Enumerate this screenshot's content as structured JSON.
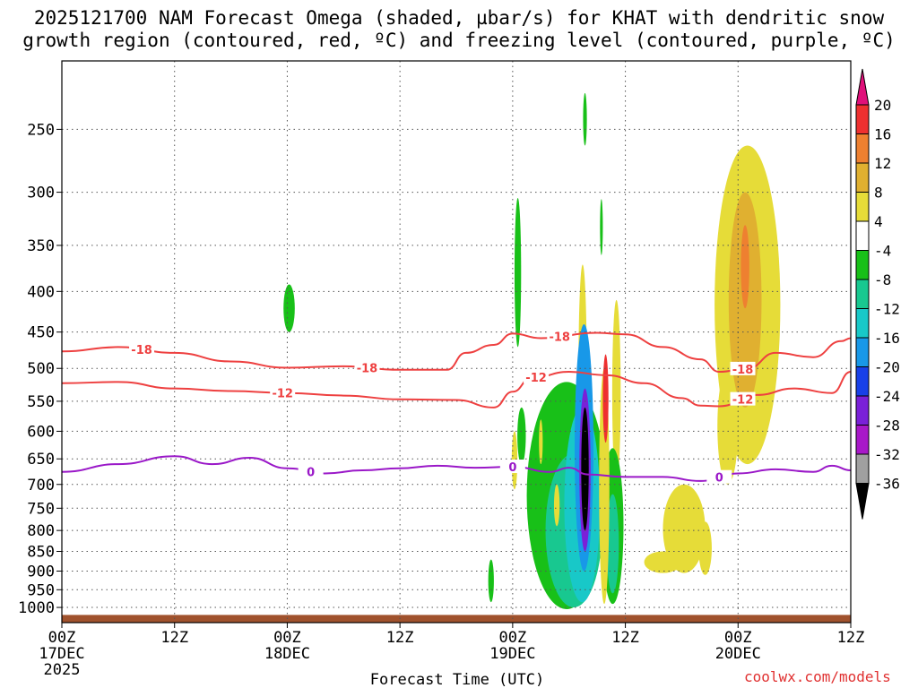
{
  "chart_data": {
    "type": "heatmap",
    "title_line1": "2025121700 NAM Forecast Omega (shaded, µbar/s) for KHAT with dendritic snow",
    "title_line2": "growth region (contoured, red, ºC) and freezing level (contoured, purple, ºC)",
    "xlabel": "Forecast Time (UTC)",
    "ylabel": "Pressure (hPa)",
    "x_ticks": [
      {
        "hours": 0,
        "line1": "00Z",
        "line2": "17DEC",
        "line3": "2025"
      },
      {
        "hours": 12,
        "line1": "12Z",
        "line2": "",
        "line3": ""
      },
      {
        "hours": 24,
        "line1": "00Z",
        "line2": "18DEC",
        "line3": ""
      },
      {
        "hours": 36,
        "line1": "12Z",
        "line2": "",
        "line3": ""
      },
      {
        "hours": 48,
        "line1": "00Z",
        "line2": "19DEC",
        "line3": ""
      },
      {
        "hours": 60,
        "line1": "12Z",
        "line2": "",
        "line3": ""
      },
      {
        "hours": 72,
        "line1": "00Z",
        "line2": "20DEC",
        "line3": ""
      },
      {
        "hours": 84,
        "line1": "12Z",
        "line2": "",
        "line3": ""
      }
    ],
    "x_range_hours": [
      0,
      84
    ],
    "y_ticks": [
      250,
      300,
      350,
      400,
      450,
      500,
      550,
      600,
      650,
      700,
      750,
      800,
      850,
      900,
      950,
      1000
    ],
    "y_range_hpa": [
      205,
      1045
    ],
    "colorbar": {
      "labels": [
        "20",
        "16",
        "12",
        "8",
        "4",
        "-4",
        "-8",
        "-12",
        "-16",
        "-20",
        "-24",
        "-28",
        "-32",
        "-36"
      ],
      "colors": [
        "#ee3030",
        "#ee8030",
        "#e0b030",
        "#e6dc38",
        "#ffffff",
        "#18c018",
        "#18c890",
        "#18c8c8",
        "#1898e8",
        "#1840e8",
        "#7a20d8",
        "#a818c8",
        "#a0a0a0",
        "#000000"
      ],
      "top_color": "#e0107a",
      "bottom_color": "#000000"
    },
    "series": [
      {
        "name": "-18 C",
        "color": "#ee4040",
        "label": "-18",
        "label_at_hours": [
          8.5,
          32.5,
          53,
          72.5
        ],
        "points": [
          [
            0,
            476
          ],
          [
            6,
            470
          ],
          [
            12,
            478
          ],
          [
            18,
            490
          ],
          [
            24,
            499
          ],
          [
            30,
            497
          ],
          [
            36,
            502
          ],
          [
            41,
            502
          ],
          [
            43,
            478
          ],
          [
            46,
            467
          ],
          [
            48,
            452
          ],
          [
            51,
            458
          ],
          [
            57,
            451
          ],
          [
            60,
            453
          ],
          [
            64,
            470
          ],
          [
            68,
            487
          ],
          [
            70,
            505
          ],
          [
            73,
            500
          ],
          [
            76,
            478
          ],
          [
            80,
            484
          ],
          [
            83,
            462
          ],
          [
            84,
            458
          ]
        ]
      },
      {
        "name": "-12 C",
        "color": "#ee4040",
        "label": "-12",
        "label_at_hours": [
          23.5,
          50.5,
          72.5
        ],
        "points": [
          [
            0,
            522
          ],
          [
            6,
            520
          ],
          [
            12,
            530
          ],
          [
            18,
            534
          ],
          [
            24,
            537
          ],
          [
            30,
            541
          ],
          [
            36,
            547
          ],
          [
            42,
            548
          ],
          [
            46,
            560
          ],
          [
            48,
            535
          ],
          [
            50,
            514
          ],
          [
            54,
            505
          ],
          [
            58,
            510
          ],
          [
            62,
            522
          ],
          [
            66,
            545
          ],
          [
            68,
            557
          ],
          [
            70,
            558
          ],
          [
            74,
            540
          ],
          [
            78,
            530
          ],
          [
            82,
            537
          ],
          [
            84,
            505
          ]
        ]
      },
      {
        "name": "0 C",
        "color": "#9a18c8",
        "label": "0",
        "label_at_hours": [
          26.5,
          48,
          70
        ],
        "points": [
          [
            0,
            675
          ],
          [
            6,
            660
          ],
          [
            12,
            645
          ],
          [
            16,
            660
          ],
          [
            20,
            648
          ],
          [
            24,
            668
          ],
          [
            28,
            678
          ],
          [
            32,
            672
          ],
          [
            36,
            668
          ],
          [
            40,
            663
          ],
          [
            44,
            667
          ],
          [
            48,
            665
          ],
          [
            52,
            675
          ],
          [
            54,
            667
          ],
          [
            56,
            680
          ],
          [
            60,
            685
          ],
          [
            64,
            685
          ],
          [
            68,
            693
          ],
          [
            72,
            678
          ],
          [
            76,
            670
          ],
          [
            80,
            675
          ],
          [
            82,
            663
          ],
          [
            84,
            672
          ]
        ]
      }
    ],
    "shaded_regions": [
      {
        "name": "green-400-18z",
        "color": "#18c018",
        "hours": [
          23.6,
          24.8
        ],
        "p": [
          392,
          450
        ]
      },
      {
        "name": "green-250-19z",
        "color": "#18c018",
        "hours": [
          55.5,
          55.9
        ],
        "p": [
          225,
          262
        ]
      },
      {
        "name": "green-330-19z",
        "color": "#18c018",
        "hours": [
          48.2,
          48.9
        ],
        "p": [
          305,
          470
        ]
      },
      {
        "name": "green-400-20z",
        "color": "#18c018",
        "hours": [
          57.3,
          57.6
        ],
        "p": [
          306,
          360
        ]
      },
      {
        "name": "yellow-upper-20",
        "color": "#e6dc38",
        "hours": [
          69.5,
          76.5
        ],
        "p": [
          262,
          660
        ]
      },
      {
        "name": "orange-upper-20",
        "color": "#e0b030",
        "hours": [
          71.0,
          74.5
        ],
        "p": [
          300,
          560
        ]
      },
      {
        "name": "darkorange-20",
        "color": "#ee8030",
        "hours": [
          72.3,
          73.2
        ],
        "p": [
          330,
          420
        ]
      },
      {
        "name": "yellow-mid-20",
        "color": "#e6dc38",
        "hours": [
          69.8,
          72.0
        ],
        "p": [
          500,
          700
        ]
      },
      {
        "name": "yellow-low-20",
        "color": "#e6dc38",
        "hours": [
          64,
          68.5
        ],
        "p": [
          700,
          905
        ]
      },
      {
        "name": "yellow-low2-20",
        "color": "#e6dc38",
        "hours": [
          62,
          66
        ],
        "p": [
          850,
          905
        ]
      },
      {
        "name": "yellow-low3-20",
        "color": "#e6dc38",
        "hours": [
          67.8,
          69.2
        ],
        "p": [
          780,
          910
        ]
      },
      {
        "name": "yellow-455-19",
        "color": "#e6dc38",
        "hours": [
          55.0,
          55.9
        ],
        "p": [
          370,
          710
        ]
      },
      {
        "name": "yellow-500-19",
        "color": "#e6dc38",
        "hours": [
          58.6,
          59.5
        ],
        "p": [
          410,
          700
        ]
      },
      {
        "name": "green-main-19",
        "color": "#18c018",
        "hours": [
          49.5,
          58.0
        ],
        "p": [
          520,
          1005
        ]
      },
      {
        "name": "teal-main-19",
        "color": "#18c890",
        "hours": [
          51.5,
          57.5
        ],
        "p": [
          640,
          1000
        ]
      },
      {
        "name": "cyan-main-19",
        "color": "#18c8c8",
        "hours": [
          53.5,
          57.3
        ],
        "p": [
          560,
          985
        ]
      },
      {
        "name": "blue-main-19",
        "color": "#1898e8",
        "hours": [
          54.6,
          56.6
        ],
        "p": [
          440,
          900
        ]
      },
      {
        "name": "purple-main-19",
        "color": "#7a20d8",
        "hours": [
          55.1,
          56.3
        ],
        "p": [
          530,
          850
        ]
      },
      {
        "name": "black-core-19",
        "color": "#000000",
        "hours": [
          55.3,
          56.1
        ],
        "p": [
          560,
          800
        ]
      },
      {
        "name": "green-right-19",
        "color": "#18c018",
        "hours": [
          57.5,
          59.8
        ],
        "p": [
          630,
          990
        ]
      },
      {
        "name": "teal-right-19",
        "color": "#18c890",
        "hours": [
          58.0,
          59.3
        ],
        "p": [
          720,
          960
        ]
      },
      {
        "name": "yellow-right-19",
        "color": "#e6dc38",
        "hours": [
          57.2,
          58.3
        ],
        "p": [
          500,
          990
        ]
      },
      {
        "name": "red-right-19",
        "color": "#ee3030",
        "hours": [
          57.6,
          58.2
        ],
        "p": [
          480,
          620
        ]
      },
      {
        "name": "green-600-19",
        "color": "#18c018",
        "hours": [
          48.5,
          49.4
        ],
        "p": [
          560,
          660
        ]
      },
      {
        "name": "yellow-650-19",
        "color": "#e6dc38",
        "hours": [
          47.9,
          48.5
        ],
        "p": [
          600,
          710
        ]
      },
      {
        "name": "green-low-19",
        "color": "#18c018",
        "hours": [
          45.4,
          46.0
        ],
        "p": [
          870,
          985
        ]
      },
      {
        "name": "yellow-750-19",
        "color": "#e6dc38",
        "hours": [
          52.4,
          53.0
        ],
        "p": [
          700,
          790
        ]
      },
      {
        "name": "yellow-630-19",
        "color": "#e6dc38",
        "hours": [
          50.8,
          51.2
        ],
        "p": [
          580,
          660
        ]
      }
    ],
    "terrain": {
      "color": "#a0522d",
      "surface_hpa": 1022
    },
    "credit": "coolwx.com/models"
  }
}
